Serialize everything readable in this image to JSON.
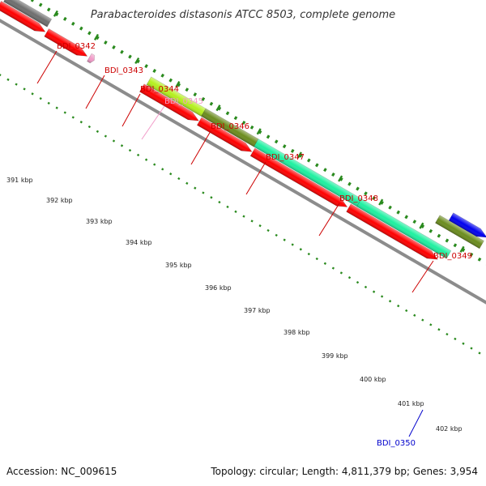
{
  "title": "Parabacteroides distasonis ATCC 8503, complete genome",
  "footer": {
    "accession": "Accession: NC_009615",
    "summary": "Topology: circular; Length: 4,811,379 bp; Genes: 3,954"
  },
  "colors": {
    "backbone": "#8c8c8c",
    "tick_dots": "#2a8a1e",
    "label_red": "#cc0000",
    "label_pink": "#f29ac8",
    "label_blue": "#0000cc"
  },
  "kbp_ticks": [
    "391 kbp",
    "392 kbp",
    "393 kbp",
    "394 kbp",
    "395 kbp",
    "396 kbp",
    "397 kbp",
    "398 kbp",
    "399 kbp",
    "400 kbp",
    "401 kbp",
    "402 kbp"
  ],
  "genes": [
    {
      "name": "BDI_0342",
      "color": "#6e6e6e",
      "label_color": "#cc0000"
    },
    {
      "name": "BDI_0343",
      "color": "#ff0000",
      "label_color": "#cc0000"
    },
    {
      "name": "BDI_0344",
      "color": "#ff0000",
      "label_color": "#cc0000"
    },
    {
      "name": "BDI_0345",
      "color": "#f29ac8",
      "label_color": "#f29ac8"
    },
    {
      "name": "BDI_0346",
      "color": "#b4f01e",
      "label_color": "#cc0000"
    },
    {
      "name": "BDI_0347",
      "color": "#6b8c1e",
      "label_color": "#cc0000"
    },
    {
      "name": "BDI_0348",
      "color": "#1ef0a0",
      "label_color": "#cc0000"
    },
    {
      "name": "BDI_0349",
      "color": "#1ef0a0",
      "label_color": "#cc0000"
    },
    {
      "name": "BDI_0350",
      "color": "#0000ee",
      "label_color": "#0000cc"
    }
  ],
  "extra_features": [
    {
      "name": "red-orf",
      "color": "#ff0000"
    },
    {
      "name": "olive-orf",
      "color": "#6b8c1e"
    }
  ]
}
